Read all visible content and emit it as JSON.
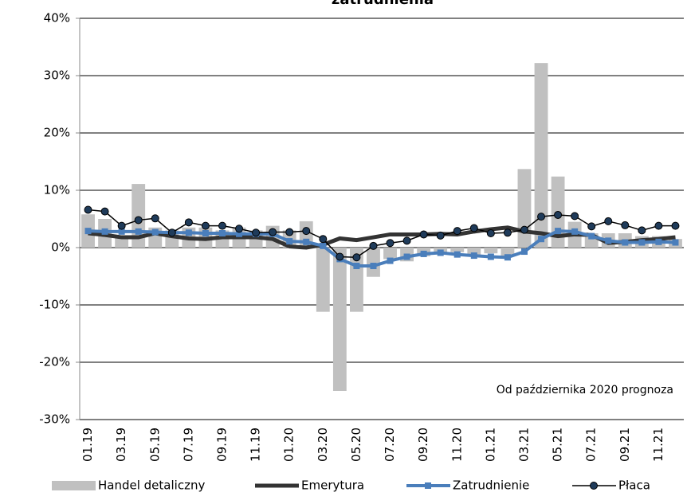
{
  "chart_data": {
    "type": "combo",
    "title": "zatrudnienia",
    "annotation": "Od października 2020 prognoza",
    "categories": [
      "01.19",
      null,
      "03.19",
      null,
      "05.19",
      null,
      "07.19",
      null,
      "09.19",
      null,
      "11.19",
      null,
      "01.20",
      null,
      "03.20",
      null,
      "05.20",
      null,
      "07.20",
      null,
      "09.20",
      null,
      "11.20",
      null,
      "01.21",
      null,
      "03.21",
      null,
      "05.21",
      null,
      "07.21",
      null,
      "09.21",
      null,
      "11.21",
      null
    ],
    "ylim": [
      -30,
      40
    ],
    "yticks": [
      {
        "value": -30,
        "label": "-30%"
      },
      {
        "value": -20,
        "label": "-20%"
      },
      {
        "value": -10,
        "label": "-10%"
      },
      {
        "value": 0,
        "label": "0%"
      },
      {
        "value": 10,
        "label": "10%"
      },
      {
        "value": 20,
        "label": "20%"
      },
      {
        "value": 30,
        "label": "30%"
      },
      {
        "value": 40,
        "label": "40%"
      }
    ],
    "grid": true,
    "legend": "bottom",
    "series": [
      {
        "name": "Handel detaliczny",
        "type": "bar",
        "color": "#c0c0c0",
        "values": [
          5.8,
          5.0,
          2.0,
          11.1,
          3.5,
          3.0,
          3.5,
          3.5,
          3.0,
          3.5,
          3.0,
          3.8,
          3.0,
          4.6,
          -11.2,
          -25.0,
          -11.2,
          -5.1,
          -2.0,
          -2.4,
          -1.5,
          -1.0,
          -0.8,
          -1.5,
          -1.0,
          -1.5,
          13.7,
          32.2,
          12.4,
          4.5,
          2.5,
          2.5,
          2.5,
          2.0,
          2.0,
          1.5
        ]
      },
      {
        "name": "Emerytura",
        "type": "line",
        "color": "#333333",
        "marker": "none",
        "values": [
          2.5,
          2.2,
          1.8,
          1.8,
          2.5,
          2.0,
          1.6,
          1.5,
          1.8,
          1.8,
          1.8,
          1.5,
          0.2,
          0.0,
          0.5,
          1.6,
          1.3,
          1.8,
          2.3,
          2.3,
          2.3,
          2.4,
          2.3,
          2.8,
          3.2,
          3.5,
          2.8,
          2.5,
          2.0,
          2.3,
          2.2,
          0.8,
          1.0,
          1.3,
          1.5,
          1.8
        ]
      },
      {
        "name": "Zatrudnienie",
        "type": "line",
        "color": "#4a7ebb",
        "marker": "square",
        "values": [
          2.9,
          2.8,
          2.8,
          2.8,
          2.7,
          2.6,
          2.6,
          2.5,
          2.5,
          2.4,
          2.4,
          2.4,
          1.1,
          1.0,
          0.3,
          -2.0,
          -3.2,
          -3.2,
          -2.3,
          -1.6,
          -1.1,
          -0.9,
          -1.2,
          -1.4,
          -1.6,
          -1.7,
          -0.7,
          1.5,
          2.9,
          2.8,
          2.0,
          1.2,
          0.9,
          0.9,
          1.0,
          0.9
        ]
      },
      {
        "name": "Płaca",
        "type": "line",
        "color": "#000000",
        "marker": "circle",
        "values": [
          6.6,
          6.3,
          3.8,
          4.8,
          5.1,
          2.6,
          4.4,
          3.8,
          3.8,
          3.3,
          2.6,
          2.7,
          2.7,
          2.9,
          1.5,
          -1.6,
          -1.7,
          0.3,
          0.8,
          1.2,
          2.3,
          2.1,
          2.9,
          3.4,
          2.5,
          2.6,
          3.1,
          5.4,
          5.7,
          5.5,
          3.7,
          4.6,
          3.9,
          3.0,
          3.8,
          3.8
        ]
      }
    ]
  }
}
